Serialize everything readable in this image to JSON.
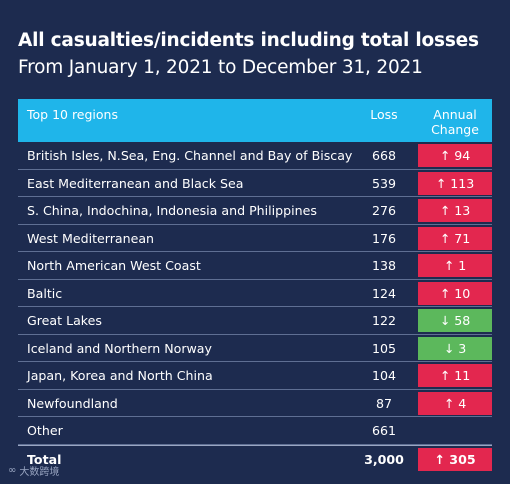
{
  "title": "All casualties/incidents including total losses",
  "subtitle": "From January 1, 2021 to December 31, 2021",
  "chart_data": {
    "type": "table",
    "columns": [
      "Top 10 regions",
      "Loss",
      "Annual Change"
    ],
    "header": {
      "region": "Top 10 regions",
      "loss": "Loss",
      "change_line1": "Annual",
      "change_line2": "Change"
    },
    "rows": [
      {
        "region": "British Isles, N.Sea, Eng. Channel and Bay of Biscay",
        "loss": "668",
        "change": "↑ 94",
        "direction": "up"
      },
      {
        "region": "East Mediterranean and Black Sea",
        "loss": "539",
        "change": "↑ 113",
        "direction": "up"
      },
      {
        "region": "S. China, Indochina, Indonesia and Philippines",
        "loss": "276",
        "change": "↑ 13",
        "direction": "up"
      },
      {
        "region": "West Mediterranean",
        "loss": "176",
        "change": "↑ 71",
        "direction": "up"
      },
      {
        "region": "North American West Coast",
        "loss": "138",
        "change": "↑ 1",
        "direction": "up"
      },
      {
        "region": "Baltic",
        "loss": "124",
        "change": "↑ 10",
        "direction": "up"
      },
      {
        "region": "Great Lakes",
        "loss": "122",
        "change": "↓ 58",
        "direction": "down"
      },
      {
        "region": "Iceland and Northern Norway",
        "loss": "105",
        "change": "↓ 3",
        "direction": "down"
      },
      {
        "region": "Japan, Korea and North China",
        "loss": "104",
        "change": "↑ 11",
        "direction": "up"
      },
      {
        "region": "Newfoundland",
        "loss": "87",
        "change": "↑ 4",
        "direction": "up"
      },
      {
        "region": "Other",
        "loss": "661",
        "change": "",
        "direction": "none"
      }
    ],
    "total": {
      "region": "Total",
      "loss": "3,000",
      "change": "↑ 305",
      "direction": "up"
    },
    "colors": {
      "background": "#1d2b4f",
      "header": "#1fb5ea",
      "increase": "#e3274f",
      "decrease": "#5cb85c"
    }
  },
  "watermark": "大数跨境"
}
